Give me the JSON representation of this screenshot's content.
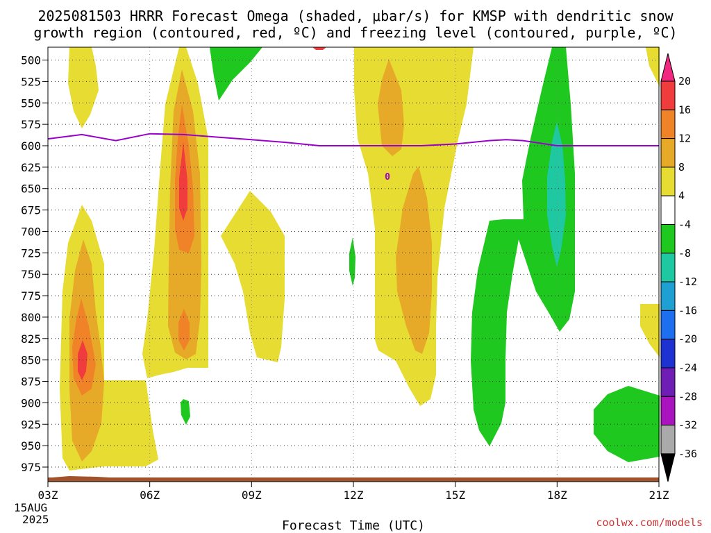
{
  "chart_data": {
    "type": "heatmap",
    "title_line1": "2025081503 HRRR Forecast Omega (shaded, μbar/s) for KMSP with dendritic snow",
    "title_line2": "growth region (contoured, red, ºC) and freezing level (contoured, purple, ºC)",
    "xlabel": "Forecast Time (UTC)",
    "x_ticks": [
      "03Z",
      "06Z",
      "09Z",
      "12Z",
      "15Z",
      "18Z",
      "21Z"
    ],
    "x_hours": [
      3,
      6,
      9,
      12,
      15,
      18,
      21
    ],
    "x_start_date": [
      "15AUG",
      "2025"
    ],
    "y_ticks": [
      "500",
      "525",
      "550",
      "575",
      "600",
      "625",
      "650",
      "675",
      "700",
      "725",
      "750",
      "775",
      "800",
      "825",
      "850",
      "875",
      "900",
      "925",
      "950",
      "975"
    ],
    "y_values": [
      500,
      525,
      550,
      575,
      600,
      625,
      650,
      675,
      700,
      725,
      750,
      775,
      800,
      825,
      850,
      875,
      900,
      925,
      950,
      975
    ],
    "y_range": [
      485,
      992
    ],
    "colorbar_ticks": [
      "20",
      "16",
      "12",
      "8",
      "4",
      "-4",
      "-8",
      "-12",
      "-16",
      "-20",
      "-24",
      "-28",
      "-32",
      "-36"
    ],
    "colorbar_colors": [
      "#f02880",
      "#f03c3c",
      "#f08228",
      "#e6aa28",
      "#e6dc32",
      "#ffffff",
      "#1ec81e",
      "#1ec8a0",
      "#1ea0d2",
      "#1e6ef0",
      "#1e32d2",
      "#6e1eb4",
      "#aa14be",
      "#aaaaaa",
      "#000000"
    ],
    "freezing_level": {
      "label": "0",
      "color": "#9900cc",
      "hours": [
        3,
        4,
        5,
        6,
        7,
        8,
        9,
        10,
        11,
        12,
        13,
        14,
        15,
        16,
        16.5,
        17,
        18,
        19,
        20,
        21
      ],
      "pressures": [
        592,
        587,
        594,
        586,
        587,
        590,
        593,
        596,
        600,
        600,
        600,
        600,
        598,
        594,
        593,
        594,
        600,
        600,
        600,
        600
      ]
    },
    "source": "coolwx.com/models"
  }
}
